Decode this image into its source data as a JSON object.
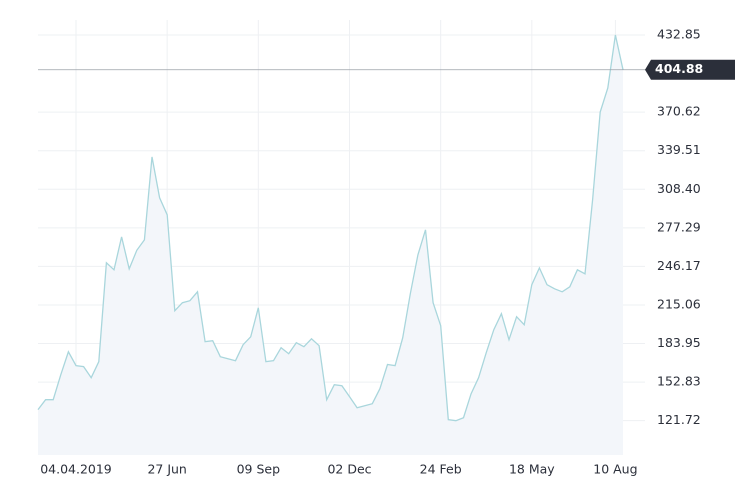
{
  "chart_data": {
    "type": "area",
    "categories": [
      null,
      null,
      null,
      null,
      null,
      "04.04.2019",
      null,
      null,
      null,
      null,
      null,
      null,
      null,
      null,
      null,
      null,
      null,
      "27 Jun",
      null,
      null,
      null,
      null,
      null,
      null,
      null,
      null,
      null,
      null,
      null,
      "09 Sep",
      null,
      null,
      null,
      null,
      null,
      null,
      null,
      null,
      null,
      null,
      null,
      "02 Dec",
      null,
      null,
      null,
      null,
      null,
      null,
      null,
      null,
      null,
      null,
      null,
      "24 Feb",
      null,
      null,
      null,
      null,
      null,
      null,
      null,
      null,
      null,
      null,
      null,
      "18 May",
      null,
      null,
      null,
      null,
      null,
      null,
      null,
      null,
      null,
      null,
      "10 Aug",
      null
    ],
    "values": [
      130.6,
      138.6,
      138.6,
      158.8,
      177.3,
      166.1,
      165.3,
      156.4,
      169.3,
      249.1,
      243.4,
      270.0,
      244.2,
      259.2,
      267.6,
      334.5,
      301.5,
      287.8,
      210.4,
      216.9,
      218.5,
      225.7,
      185.4,
      186.2,
      173.3,
      171.7,
      170.1,
      183.0,
      189.4,
      212.8,
      169.3,
      170.1,
      180.6,
      175.7,
      184.6,
      181.4,
      187.8,
      182.2,
      138.6,
      150.7,
      149.9,
      141.1,
      132.2,
      133.8,
      135.4,
      147.5,
      167.0,
      166.1,
      188.6,
      224.1,
      255.5,
      275.7,
      216.9,
      198.3,
      122.5,
      121.7,
      124.1,
      143.5,
      156.4,
      176.5,
      195.1,
      208.0,
      187.0,
      205.6,
      199.1,
      231.4,
      245.0,
      231.4,
      228.1,
      225.7,
      229.7,
      243.4,
      240.2,
      299.9,
      370.8,
      390.1,
      432.9,
      404.88
    ],
    "color": "#a9d6dc",
    "fill": "#f3f6fa",
    "ylim": [
      94,
      445
    ],
    "yticks": [
      121.72,
      152.83,
      183.95,
      215.06,
      246.17,
      277.29,
      {
        "value": 308.4,
        "label": "308.40"
      },
      339.51,
      370.62,
      432.85
    ],
    "grid": true
  }
}
